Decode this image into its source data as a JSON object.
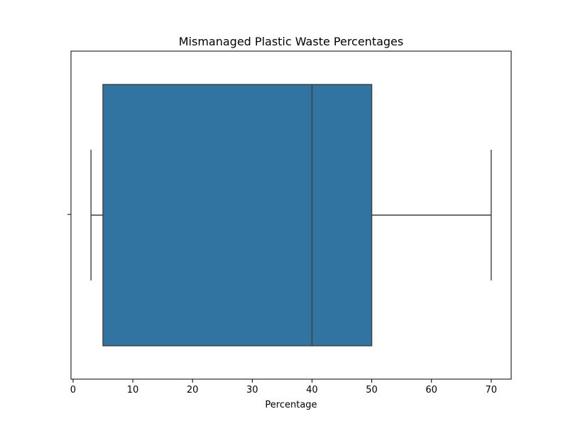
{
  "chart_data": {
    "type": "box",
    "title": "Mismanaged Plastic Waste Percentages",
    "xlabel": "Percentage",
    "ylabel": "",
    "xlim": [
      -0.35,
      73.35
    ],
    "x_ticks": [
      0,
      10,
      20,
      30,
      40,
      50,
      60,
      70
    ],
    "x_tick_labels": [
      "0",
      "10",
      "20",
      "30",
      "40",
      "50",
      "60",
      "70"
    ],
    "grid": false,
    "orientation": "horizontal",
    "box": {
      "whisker_low": 3,
      "q1": 5,
      "median": 40,
      "q3": 50,
      "whisker_high": 70
    },
    "colors": {
      "box_fill": "#3274a1",
      "line": "#3f3f3f"
    }
  }
}
